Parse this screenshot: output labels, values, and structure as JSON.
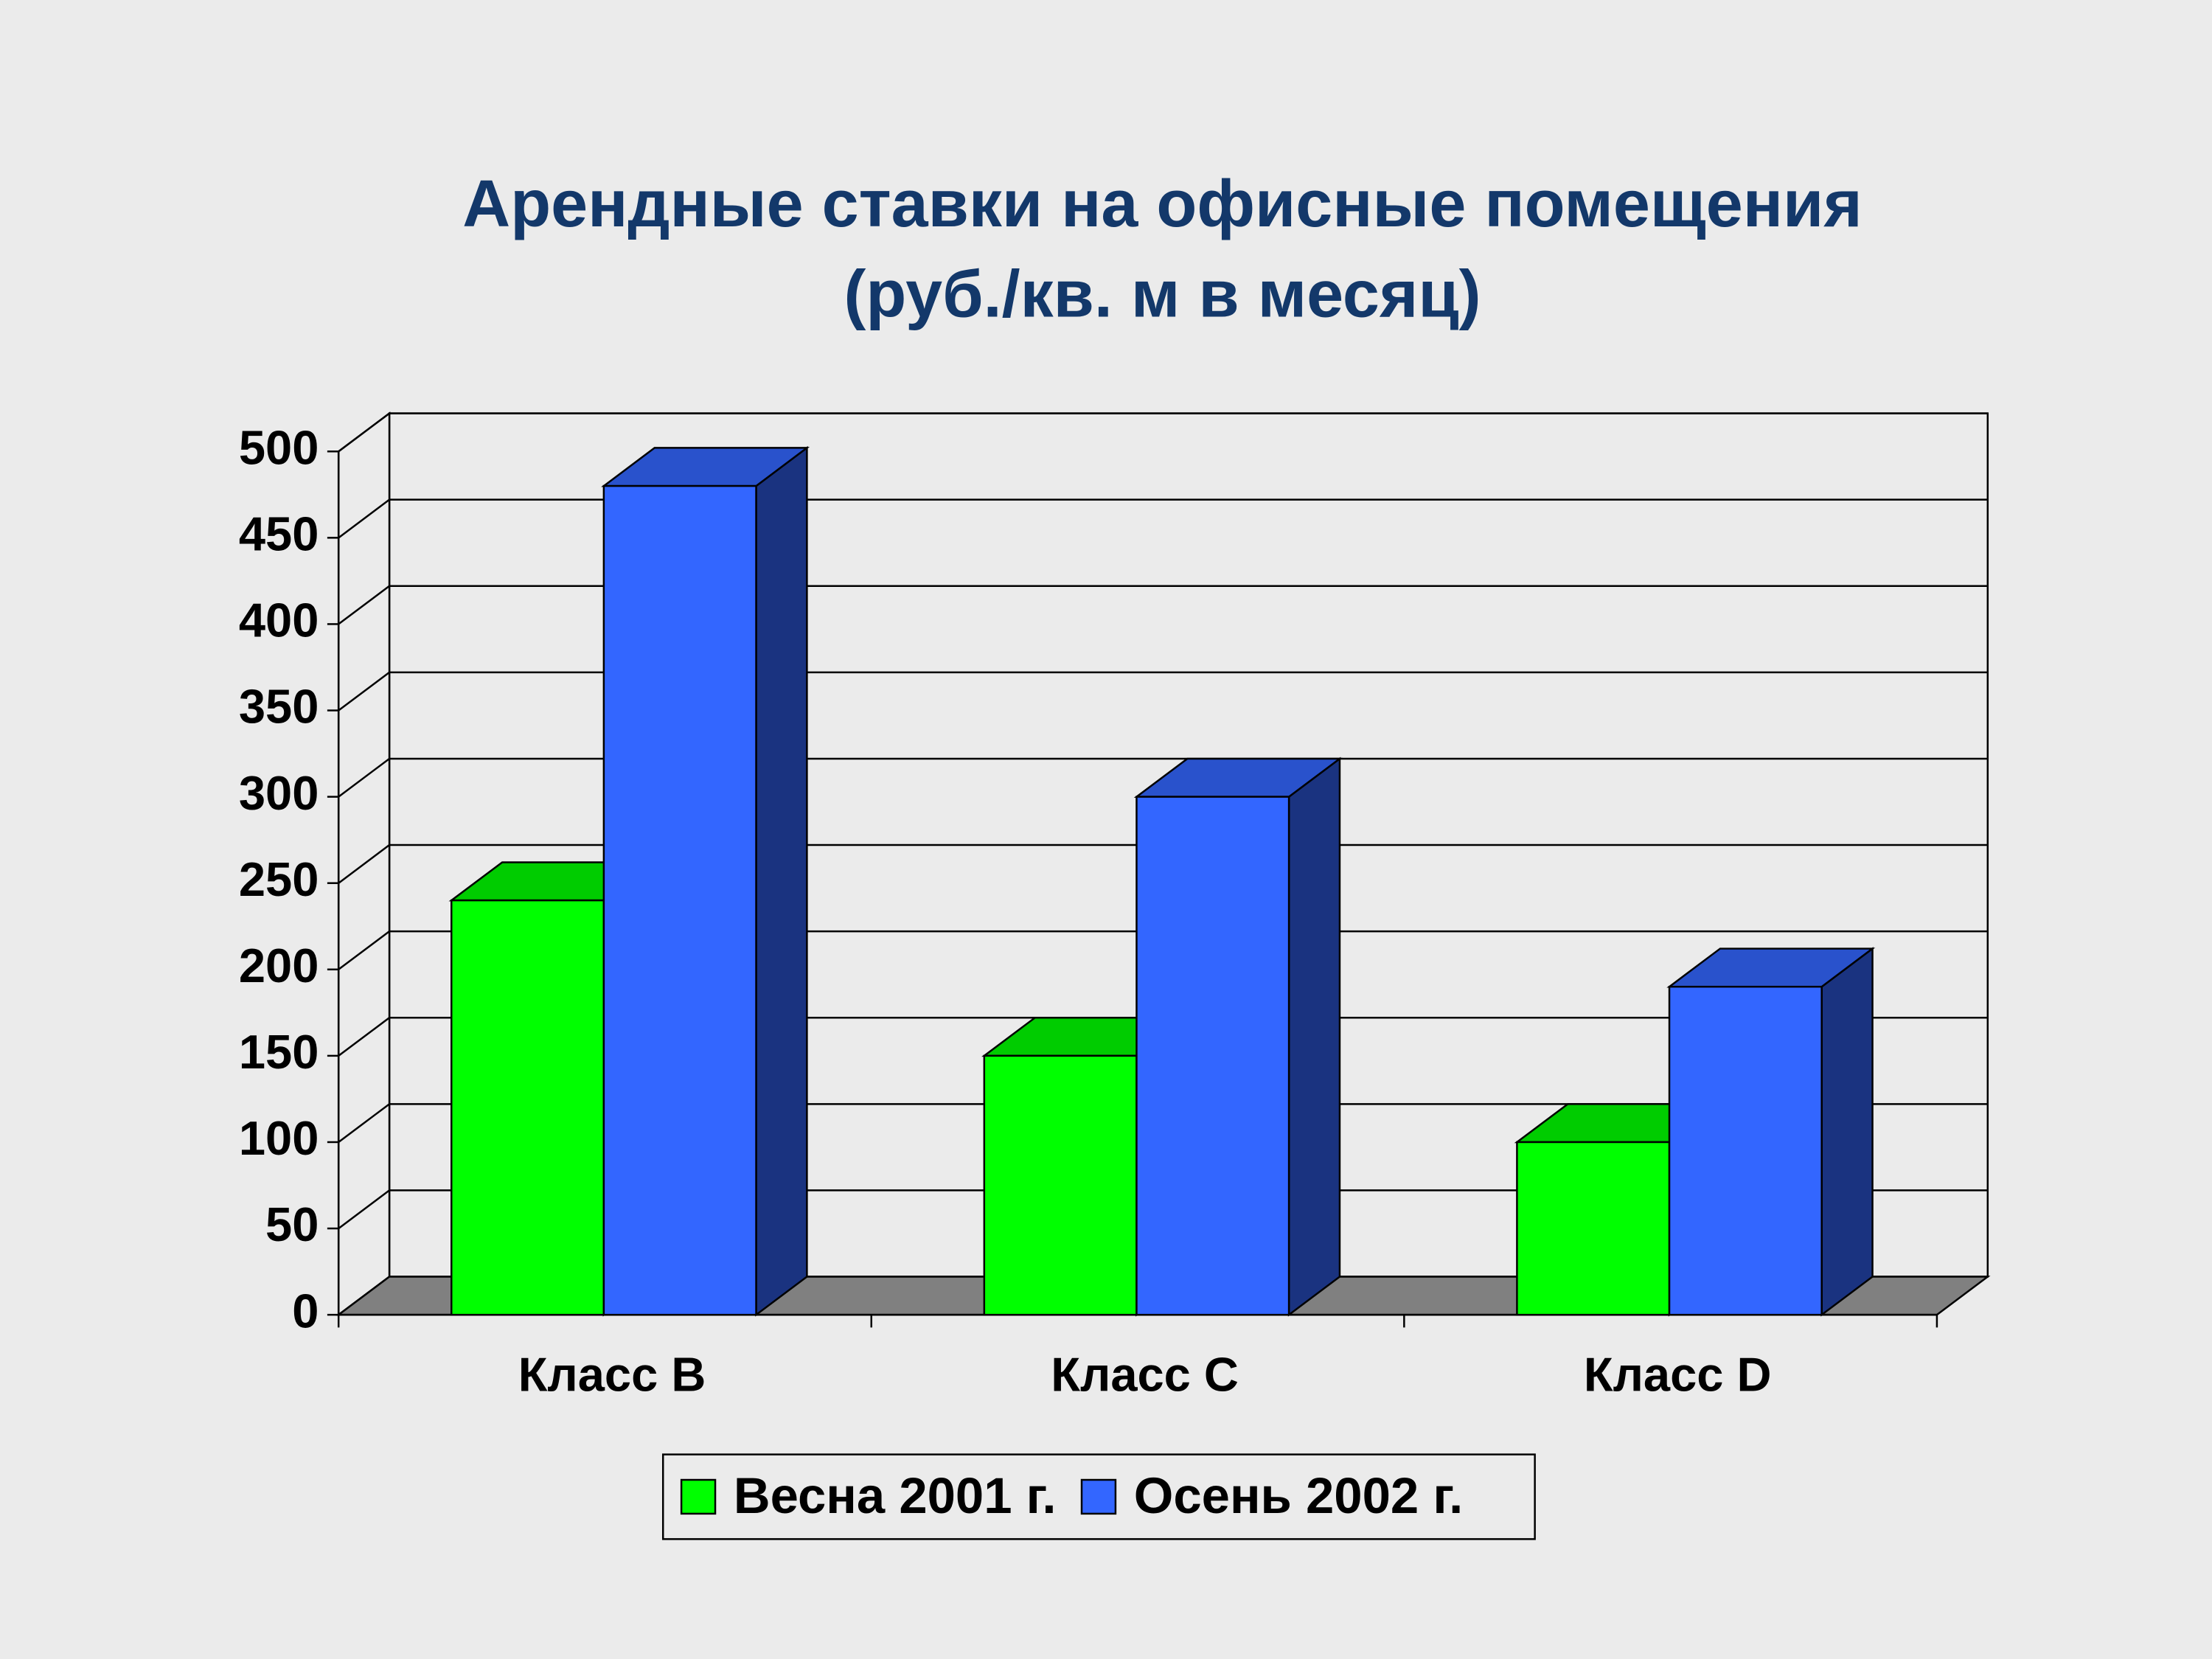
{
  "chart_data": {
    "type": "bar3d",
    "title": "Арендные ставки на офисные помещения",
    "subtitle": "(руб./кв. м в месяц)",
    "categories": [
      "Класс B",
      "Класс C",
      "Класс D"
    ],
    "series": [
      {
        "name": "Весна 2001 г.",
        "color": "#00ff00",
        "values": [
          240,
          150,
          100
        ]
      },
      {
        "name": "Осень 2002 г.",
        "color": "#3366ff",
        "values": [
          480,
          300,
          190
        ]
      }
    ],
    "ylim": [
      0,
      500
    ],
    "yticks": [
      0,
      50,
      100,
      150,
      200,
      250,
      300,
      350,
      400,
      450,
      500
    ],
    "grid": true,
    "legend": "bottom"
  }
}
